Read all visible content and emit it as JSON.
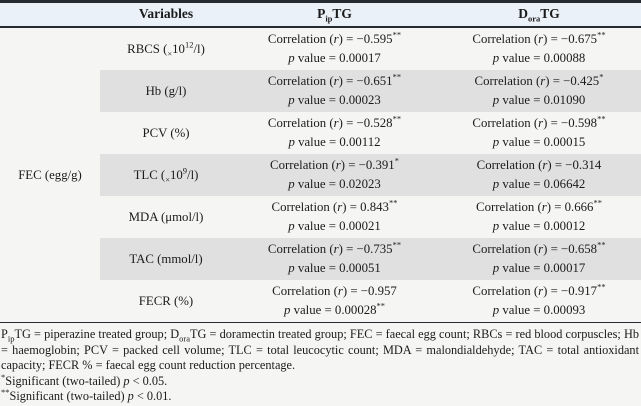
{
  "labels": {
    "corr_pre": "Correlation (",
    "r": "r",
    "corr_eq": ") = ",
    "p": "p",
    "p_mid": " value = "
  },
  "table": {
    "header": {
      "variables": "Variables",
      "pip": {
        "pre": "P",
        "sub": "ip",
        "post": "TG"
      },
      "dora": {
        "pre": "D",
        "sub": "ora",
        "post": "TG"
      }
    },
    "group_label": "FEC (egg/g)",
    "rows": [
      {
        "variable": {
          "pre": "RBCS (",
          "sub": "×",
          "base": "10",
          "sup": "12",
          "post": "/l)"
        },
        "pip": {
          "corr": "−0.595",
          "corr_stars": "**",
          "p": "0.00017",
          "p_stars": ""
        },
        "dora": {
          "corr": "−0.675",
          "corr_stars": "**",
          "p": "0.00088",
          "p_stars": ""
        }
      },
      {
        "variable": {
          "pre": "Hb (g/l)",
          "sub": "",
          "base": "",
          "sup": "",
          "post": ""
        },
        "pip": {
          "corr": "−0.651",
          "corr_stars": "**",
          "p": "0.00023",
          "p_stars": ""
        },
        "dora": {
          "corr": "−0.425",
          "corr_stars": "*",
          "p": "0.01090",
          "p_stars": ""
        }
      },
      {
        "variable": {
          "pre": "PCV (%)",
          "sub": "",
          "base": "",
          "sup": "",
          "post": ""
        },
        "pip": {
          "corr": "−0.528",
          "corr_stars": "**",
          "p": "0.00112",
          "p_stars": ""
        },
        "dora": {
          "corr": "−0.598",
          "corr_stars": "**",
          "p": "0.00015",
          "p_stars": ""
        }
      },
      {
        "variable": {
          "pre": "TLC (",
          "sub": "×",
          "base": "10",
          "sup": "9",
          "post": "/l)"
        },
        "pip": {
          "corr": "−0.391",
          "corr_stars": "*",
          "p": "0.02023",
          "p_stars": ""
        },
        "dora": {
          "corr": "−0.314",
          "corr_stars": "",
          "p": "0.06642",
          "p_stars": ""
        }
      },
      {
        "variable": {
          "pre": "MDA (μmol/l)",
          "sub": "",
          "base": "",
          "sup": "",
          "post": ""
        },
        "pip": {
          "corr": "0.843",
          "corr_stars": "**",
          "p": "0.00021",
          "p_stars": ""
        },
        "dora": {
          "corr": "0.666",
          "corr_stars": "**",
          "p": "0.00012",
          "p_stars": ""
        }
      },
      {
        "variable": {
          "pre": "TAC (mmol/l)",
          "sub": "",
          "base": "",
          "sup": "",
          "post": ""
        },
        "pip": {
          "corr": "−0.735",
          "corr_stars": "**",
          "p": "0.00051",
          "p_stars": ""
        },
        "dora": {
          "corr": "−0.658",
          "corr_stars": "**",
          "p": "0.00017",
          "p_stars": ""
        }
      },
      {
        "variable": {
          "pre": "FECR (%)",
          "sub": "",
          "base": "",
          "sup": "",
          "post": ""
        },
        "pip": {
          "corr": "−0.957",
          "corr_stars": "",
          "p": "0.00028",
          "p_stars": "**"
        },
        "dora": {
          "corr": "−0.917",
          "corr_stars": "**",
          "p": "0.00093",
          "p_stars": ""
        }
      }
    ]
  },
  "footnotes": {
    "abbreviations": {
      "p1": "P",
      "sub1": "ip",
      "mid": "TG = piperazine treated group; D",
      "sub2": "ora",
      "rest": "TG = doramectin treated group; FEC = faecal egg count; RBCs = red blood corpuscles; Hb = haemoglobin; PCV = packed cell volume; TLC = total leucocytic count; MDA = malondialdehyde; TAC = total antioxidant capacity; FECR % = faecal egg count reduction percentage."
    },
    "sig_05": {
      "stars": "*",
      "text": "Significant (two-tailed) ",
      "p": "p",
      "post": " < 0.05."
    },
    "sig_01": {
      "stars": "**",
      "text": "Significant (two-tailed) ",
      "p": "p",
      "post": " < 0.01."
    }
  },
  "colors": {
    "header_bg": "#ebf1f9",
    "stripe_bg": "#e0e0e0",
    "rule": "#252a31",
    "text": "#1b1b1b",
    "page_bg": "#f5f5f4"
  }
}
